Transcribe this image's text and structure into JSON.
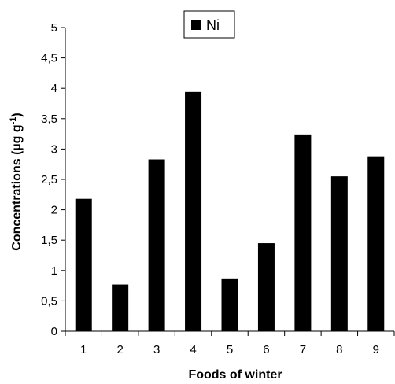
{
  "chart_data": {
    "type": "bar",
    "categories": [
      "1",
      "2",
      "3",
      "4",
      "5",
      "6",
      "7",
      "8",
      "9"
    ],
    "series": [
      {
        "name": "Ni",
        "values": [
          2.18,
          0.77,
          2.83,
          3.94,
          0.87,
          1.45,
          3.24,
          2.55,
          2.88
        ]
      }
    ],
    "xlabel": "Foods of winter",
    "ylabel": "Concentrations (µg g",
    "ylabel_sup": "-1",
    "ylabel_close": ")",
    "ylim": [
      0,
      5
    ],
    "yticks": [
      "0",
      "0,5",
      "1",
      "1,5",
      "2",
      "2,5",
      "3",
      "3,5",
      "4",
      "4,5",
      "5"
    ],
    "ytick_values": [
      0,
      0.5,
      1,
      1.5,
      2,
      2.5,
      3,
      3.5,
      4,
      4.5,
      5
    ],
    "grid": false,
    "legend": "top-center",
    "bar_color": "#000000"
  }
}
